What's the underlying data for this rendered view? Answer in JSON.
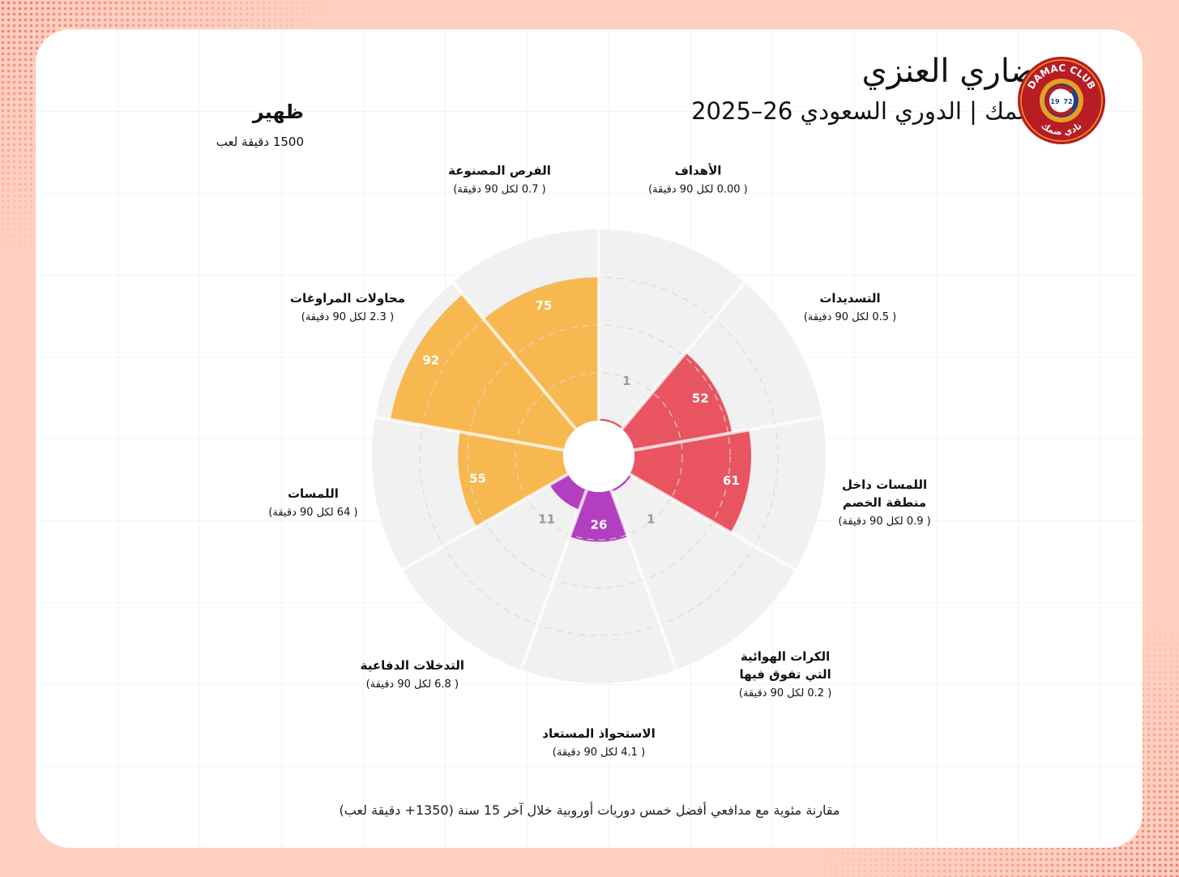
{
  "player": {
    "name": "ضاري العنزي",
    "club": "ضمك",
    "league": "الدوري السعودي",
    "season": "2025–26",
    "position": "ظهير",
    "minutes_label": "1500 دقيقة لعب"
  },
  "logo": {
    "top_text": "DAMAC CLUB",
    "bottom_text": "نادي ضمك",
    "year_left": "19",
    "year_right": "72"
  },
  "footer": "مقارنة مئوية مع مدافعي أفضل خمس دوريات أوروبية خلال آخر 15 سنة (1350+ دقيقة لعب)",
  "colors": {
    "background": "#ffcfc0",
    "card": "#ffffff",
    "slice_bg": "#f1f1f1",
    "attacking": "#e85560",
    "defending": "#b23fbf",
    "possession": "#f7b84f",
    "low_value": "#999999",
    "logo_red": "#b81c24",
    "logo_gold": "#e8a020"
  },
  "chart_data": {
    "type": "polar-bar",
    "title": "ضاري العنزي",
    "scale": [
      0,
      100
    ],
    "categories": [
      {
        "name": "الأهداف",
        "value_text": "( 0.00 لكل 90 دقيقة)",
        "percentile": 1,
        "group": "attacking"
      },
      {
        "name": "التسديدات",
        "value_text": "( 0.5 لكل 90 دقيقة)",
        "percentile": 52,
        "group": "attacking"
      },
      {
        "name": "اللمسات داخل منطقة الخصم",
        "name_lines": [
          "اللمسات داخل",
          "منطقة الخصم"
        ],
        "value_text": "( 0.9 لكل 90 دقيقة)",
        "percentile": 61,
        "group": "attacking"
      },
      {
        "name": "الكرات الهوائية التي تفوق فيها",
        "name_lines": [
          "الكرات الهوائية",
          "التي تفوق فيها"
        ],
        "value_text": "( 0.2 لكل 90 دقيقة)",
        "percentile": 1,
        "group": "defending"
      },
      {
        "name": "الاستحواذ المستعاد",
        "value_text": "( 4.1  لكل 90 دقيقة)",
        "percentile": 26,
        "group": "defending"
      },
      {
        "name": "التدخلات الدفاعية",
        "value_text": "( 6.8 لكل 90 دقيقة)",
        "percentile": 11,
        "group": "defending"
      },
      {
        "name": "اللمسات",
        "value_text": "( 64 لكل 90 دقيقة)",
        "percentile": 55,
        "group": "possession"
      },
      {
        "name": "محاولات المراوغات",
        "value_text": "( 2.3 لكل 90 دقيقة)",
        "percentile": 92,
        "group": "possession"
      },
      {
        "name": "الفرص المصنوعة",
        "value_text": "( 0.7 لكل 90 دقيقة)",
        "percentile": 75,
        "group": "possession"
      }
    ]
  }
}
